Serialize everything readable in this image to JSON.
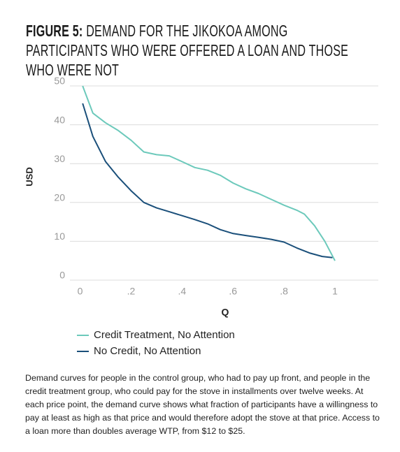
{
  "chart_data": {
    "type": "line",
    "label": "FIGURE 5:",
    "title": "DEMAND FOR THE JIKOKOA AMONG PARTICIPANTS WHO WERE OFFERED A LOAN AND THOSE WHO WERE NOT",
    "x_label": "Q",
    "y_label": "USD",
    "xlim": [
      -0.04,
      1.17
    ],
    "ylim": [
      0,
      50
    ],
    "xticks": [
      0,
      {
        "value": 0.2,
        "label": ".2"
      },
      {
        "value": 0.4,
        "label": ".4"
      },
      {
        "value": 0.6,
        "label": ".6"
      },
      {
        "value": 0.8,
        "label": ".8"
      },
      1
    ],
    "yticks": [
      0,
      10,
      20,
      30,
      40,
      50
    ],
    "grid": true,
    "series": [
      {
        "name": "Credit Treatment, No Attention",
        "color": "#6cc9bb",
        "x": [
          0.01,
          0.05,
          0.1,
          0.15,
          0.2,
          0.25,
          0.3,
          0.35,
          0.4,
          0.45,
          0.5,
          0.55,
          0.6,
          0.65,
          0.7,
          0.75,
          0.8,
          0.85,
          0.88,
          0.92,
          0.96,
          1.0
        ],
        "values": [
          50,
          43,
          40.5,
          38.5,
          36,
          33,
          32.3,
          32,
          30.5,
          29,
          28.3,
          27,
          25,
          23.5,
          22.3,
          20.8,
          19.3,
          18,
          17,
          14,
          10,
          5
        ]
      },
      {
        "name": "No Credit, No Attention",
        "color": "#1a4f7a",
        "x": [
          0.01,
          0.05,
          0.1,
          0.15,
          0.2,
          0.25,
          0.3,
          0.35,
          0.4,
          0.45,
          0.5,
          0.55,
          0.6,
          0.65,
          0.7,
          0.75,
          0.8,
          0.85,
          0.9,
          0.95,
          0.99
        ],
        "values": [
          45.5,
          37,
          30.5,
          26.5,
          23,
          20,
          18.6,
          17.6,
          16.6,
          15.6,
          14.5,
          13,
          12,
          11.5,
          11,
          10.5,
          9.8,
          8.3,
          7,
          6.1,
          5.8
        ]
      }
    ]
  },
  "caption": "Demand curves for people in the control group, who had to pay up front, and people in the credit treatment group, who could pay for the stove in installments over twelve weeks. At each price point, the demand curve shows what fraction of participants have a willingness to pay at least as high as that price and would therefore adopt the stove at that price. Access to a loan more than doubles average WTP, from $12 to $25."
}
